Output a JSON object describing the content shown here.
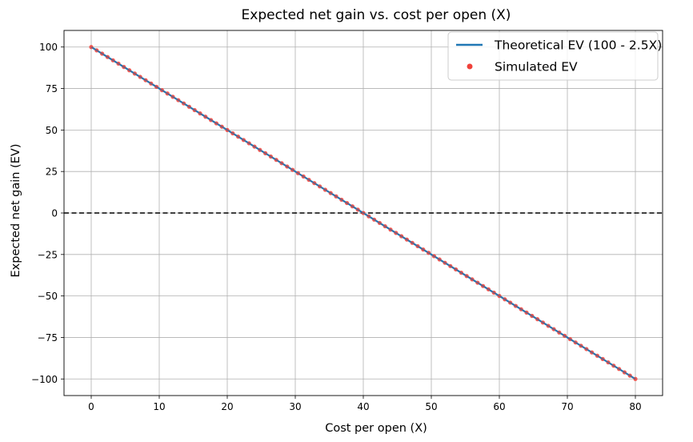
{
  "chart_data": {
    "type": "line",
    "title": "Expected net gain vs. cost per open (X)",
    "xlabel": "Cost per open (X)",
    "ylabel": "Expected net gain (EV)",
    "xlim": [
      -4,
      84
    ],
    "ylim": [
      -110,
      110
    ],
    "xticks": [
      0,
      10,
      20,
      30,
      40,
      50,
      60,
      70,
      80
    ],
    "yticks": [
      100,
      75,
      50,
      25,
      0,
      -25,
      -50,
      -75,
      -100
    ],
    "xtick_labels": [
      "0",
      "10",
      "20",
      "30",
      "40",
      "50",
      "60",
      "70",
      "80"
    ],
    "ytick_labels": [
      "100",
      "75",
      "50",
      "25",
      "0",
      "−25",
      "−50",
      "−75",
      "−100"
    ],
    "grid": true,
    "legend_position": "top-right",
    "reference_line": {
      "y": 0,
      "style": "dashed",
      "color": "#000000"
    },
    "series": [
      {
        "name": "Theoretical EV (100 - 2.5X)",
        "kind": "line",
        "color": "#1f77b4",
        "x": [
          0,
          80
        ],
        "y": [
          100,
          -100
        ]
      },
      {
        "name": "Simulated EV",
        "kind": "scatter",
        "color": "#f0413a",
        "x_start": 0,
        "x_end": 80,
        "x_step": 0.8,
        "formula": "100 - 2.5X"
      }
    ]
  }
}
